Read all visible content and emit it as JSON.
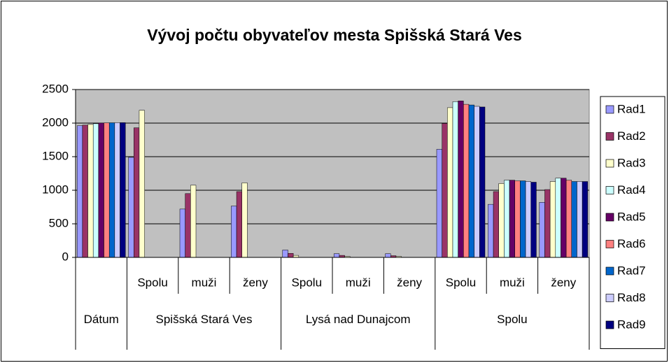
{
  "chart_data": {
    "type": "bar",
    "title": "Vývoj počtu obyvateľov  mesta Spišská Stará Ves",
    "category_groups": [
      {
        "label": "Dátum",
        "categories": [
          null
        ]
      },
      {
        "label": "Spišská Stará Ves",
        "categories": [
          "Spolu",
          "muži",
          "ženy"
        ]
      },
      {
        "label": "Lysá nad Dunajcom",
        "categories": [
          "Spolu",
          "muži",
          "ženy"
        ]
      },
      {
        "label": "Spolu",
        "categories": [
          "Spolu",
          "muži",
          "ženy"
        ]
      }
    ],
    "series": [
      {
        "name": "Rad1",
        "color": "#9999ff",
        "values": [
          1961,
          1490,
          720,
          765,
          110,
          55,
          55,
          1610,
          790,
          820
        ]
      },
      {
        "name": "Rad2",
        "color": "#993366",
        "values": [
          1970,
          1930,
          950,
          980,
          60,
          30,
          25,
          1995,
          980,
          1010
        ]
      },
      {
        "name": "Rad3",
        "color": "#ffffcc",
        "values": [
          1980,
          2190,
          1075,
          1110,
          30,
          15,
          15,
          2230,
          1100,
          1130
        ]
      },
      {
        "name": "Rad4",
        "color": "#ccffff",
        "values": [
          1991,
          null,
          null,
          null,
          null,
          null,
          null,
          2320,
          1150,
          1180
        ]
      },
      {
        "name": "Rad5",
        "color": "#660066",
        "values": [
          2001,
          null,
          null,
          null,
          null,
          null,
          null,
          2330,
          1150,
          1180
        ]
      },
      {
        "name": "Rad6",
        "color": "#ff8080",
        "values": [
          2004,
          null,
          null,
          null,
          null,
          null,
          null,
          2280,
          1140,
          1150
        ]
      },
      {
        "name": "Rad7",
        "color": "#0066cc",
        "values": [
          2005,
          null,
          null,
          null,
          null,
          null,
          null,
          2270,
          1140,
          1130
        ]
      },
      {
        "name": "Rad8",
        "color": "#ccccff",
        "values": [
          2006,
          null,
          null,
          null,
          null,
          null,
          null,
          2250,
          1130,
          1130
        ]
      },
      {
        "name": "Rad9",
        "color": "#000080",
        "values": [
          2007,
          null,
          null,
          null,
          null,
          null,
          null,
          2240,
          1120,
          1130
        ]
      }
    ],
    "ylim": [
      0,
      2500
    ],
    "yticks": [
      0,
      500,
      1000,
      1500,
      2000,
      2500
    ],
    "grid": true,
    "plot_background": "#c0c0c0",
    "legend": "right"
  }
}
